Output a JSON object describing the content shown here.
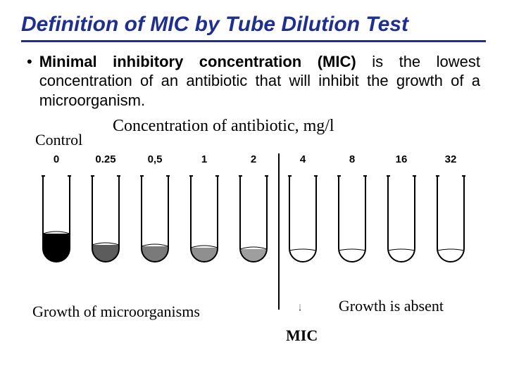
{
  "title": "Definition of MIC by Tube Dilution Test",
  "bullet": {
    "bold": "Minimal inhibitory concentration (MIC)",
    "rest": " is the lowest concentration of an antibiotic that will inhibit the growth of a microorganism."
  },
  "figure": {
    "control_label": "Control",
    "conc_label": "Concentration of antibiotic, mg/l",
    "growth_label": "Growth of microorganisms",
    "absent_label": "Growth is absent",
    "mic_label": "MIC",
    "mic_divider_after_index": 4,
    "outline_color": "#000000",
    "background_color": "#ffffff",
    "tubes": [
      {
        "value": "0",
        "fill_height": 40,
        "fill_color": "#000000"
      },
      {
        "value": "0.25",
        "fill_height": 24,
        "fill_color": "#5c5c5c"
      },
      {
        "value": "0,5",
        "fill_height": 22,
        "fill_color": "#7a7a7a"
      },
      {
        "value": "1",
        "fill_height": 20,
        "fill_color": "#8f8f8f"
      },
      {
        "value": "2",
        "fill_height": 18,
        "fill_color": "#9e9e9e"
      },
      {
        "value": "4",
        "fill_height": 0,
        "fill_color": "#ffffff"
      },
      {
        "value": "8",
        "fill_height": 0,
        "fill_color": "#ffffff"
      },
      {
        "value": "16",
        "fill_height": 0,
        "fill_color": "#ffffff"
      },
      {
        "value": "32",
        "fill_height": 0,
        "fill_color": "#ffffff"
      }
    ]
  }
}
